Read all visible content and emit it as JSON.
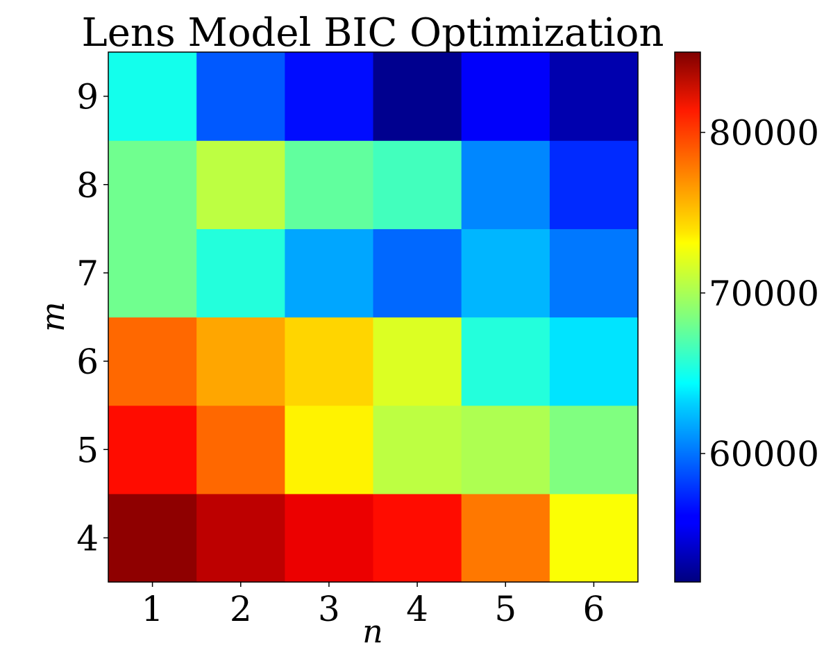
{
  "chart_data": {
    "type": "heatmap",
    "title": "Lens Model BIC Optimization",
    "xlabel": "n",
    "ylabel": "m",
    "x": [
      1,
      2,
      3,
      4,
      5,
      6
    ],
    "y": [
      4,
      5,
      6,
      7,
      8,
      9
    ],
    "x_tick_labels": [
      "1",
      "2",
      "3",
      "4",
      "5",
      "6"
    ],
    "y_tick_labels": [
      "4",
      "5",
      "6",
      "7",
      "8",
      "9"
    ],
    "values": [
      [
        84500,
        83000,
        81500,
        80500,
        77000,
        72500
      ],
      [
        80500,
        77500,
        73000,
        70500,
        70000,
        68500
      ],
      [
        77500,
        75500,
        74000,
        71500,
        65500,
        63500
      ],
      [
        68000,
        65500,
        61500,
        59500,
        62000,
        60000
      ],
      [
        68000,
        70500,
        67500,
        66500,
        60500,
        57500
      ],
      [
        65000,
        59000,
        56500,
        52500,
        56000,
        53500
      ]
    ],
    "colormap": "jet",
    "colorbar": {
      "min": 52000,
      "max": 85000,
      "ticks": [
        60000,
        70000,
        80000
      ],
      "tick_labels": [
        "60000",
        "70000",
        "80000"
      ]
    },
    "grid": false
  }
}
